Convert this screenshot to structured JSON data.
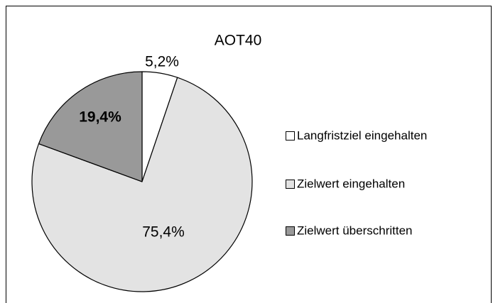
{
  "chart_data": {
    "type": "pie",
    "title": "AOT40",
    "categories": [
      "Langfristziel eingehalten",
      "Zielwert eingehalten",
      "Zielwert überschritten"
    ],
    "values": [
      5.2,
      75.4,
      19.4
    ],
    "value_labels": [
      "5,2%",
      "75,4%",
      "19,4%"
    ],
    "colors": [
      "#ffffff",
      "#e3e3e3",
      "#999999"
    ],
    "legend": "right"
  }
}
